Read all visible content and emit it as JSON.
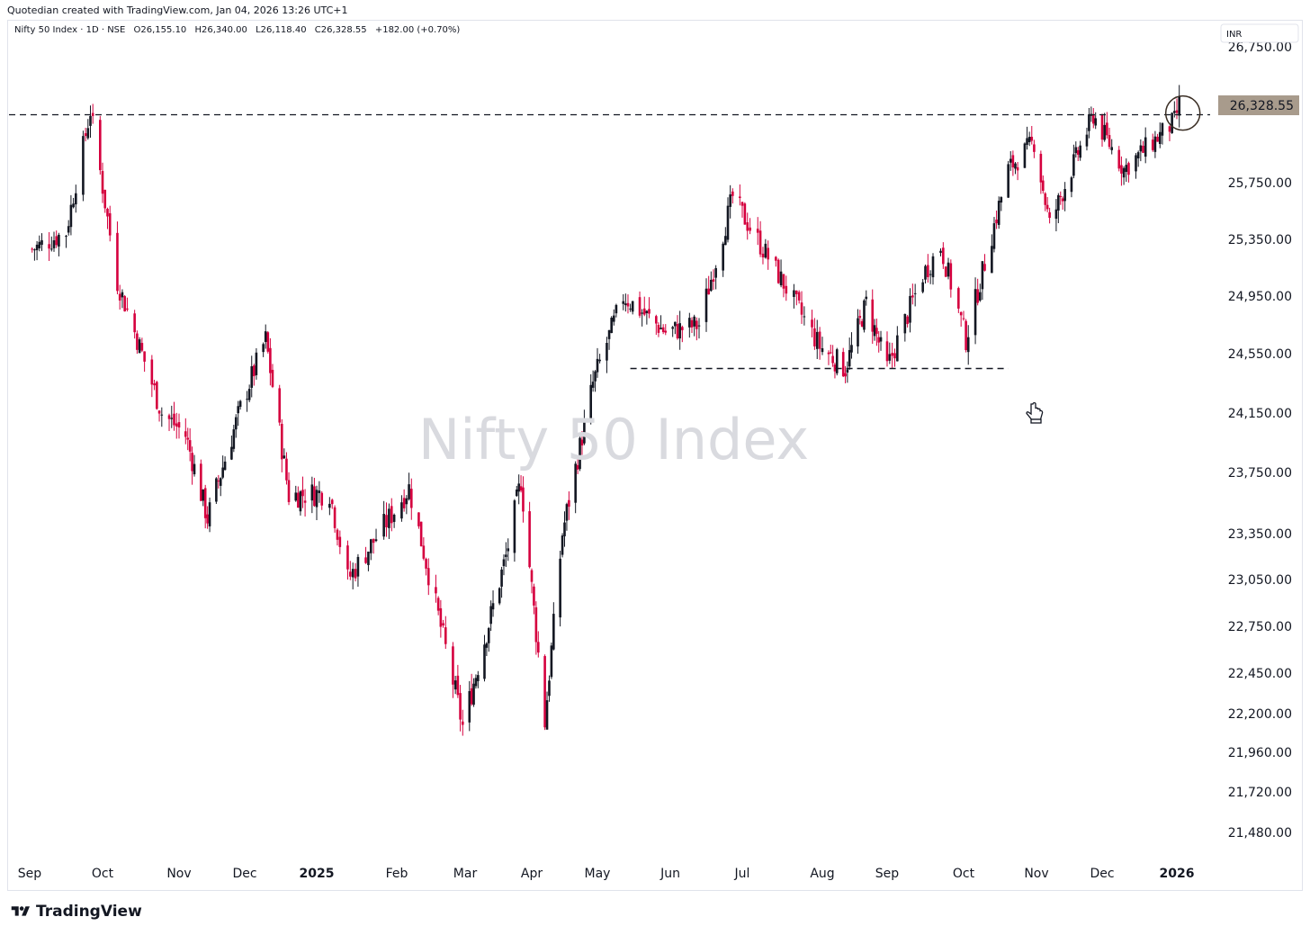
{
  "header": {
    "created_by": "Quotedian created with TradingView.com, Jan 04, 2026 13:26 UTC+1"
  },
  "legend": {
    "symbol": "Nifty 50 Index · 1D · NSE",
    "open": "O26,155.10",
    "high": "H26,340.00",
    "low": "L26,118.40",
    "close": "C26,328.55",
    "change": "+182.00 (+0.70%)"
  },
  "currency": "INR",
  "watermark": "Nifty 50 Index",
  "last_price_label": "26,328.55",
  "footer": {
    "brand": "TradingView"
  },
  "colors": {
    "up": "#131722",
    "down": "#d5003e",
    "last_price_bg": "#a89b8c",
    "dashed": "#131722"
  },
  "chart_data": {
    "type": "candlestick",
    "title": "Nifty 50 Index",
    "yaxis_ticks": [
      "26,750.00",
      "25,750.00",
      "25,350.00",
      "24,950.00",
      "24,550.00",
      "24,150.00",
      "23,750.00",
      "23,350.00",
      "23,050.00",
      "22,750.00",
      "22,450.00",
      "22,200.00",
      "21,960.00",
      "21,720.00",
      "21,480.00"
    ],
    "xaxis_ticks": [
      "Sep",
      "Oct",
      "Nov",
      "Dec",
      "2025",
      "Feb",
      "Mar",
      "Apr",
      "May",
      "Jun",
      "Jul",
      "Aug",
      "Sep",
      "Oct",
      "Nov",
      "Dec",
      "2026"
    ],
    "close_path": [
      [
        "2024-09-02",
        25280
      ],
      [
        "2024-09-16",
        25400
      ],
      [
        "2024-09-26",
        26280
      ],
      [
        "2024-10-07",
        25050
      ],
      [
        "2024-10-25",
        24150
      ],
      [
        "2024-11-04",
        24000
      ],
      [
        "2024-11-14",
        23450
      ],
      [
        "2024-11-29",
        24180
      ],
      [
        "2024-12-10",
        24650
      ],
      [
        "2024-12-20",
        23600
      ],
      [
        "2025-01-06",
        23620
      ],
      [
        "2025-01-13",
        23050
      ],
      [
        "2025-01-31",
        23500
      ],
      [
        "2025-02-06",
        23650
      ],
      [
        "2025-02-28",
        22120
      ],
      [
        "2025-03-20",
        23200
      ],
      [
        "2025-03-27",
        23700
      ],
      [
        "2025-04-07",
        22150
      ],
      [
        "2025-04-15",
        23350
      ],
      [
        "2025-04-29",
        24350
      ],
      [
        "2025-05-12",
        24950
      ],
      [
        "2025-05-30",
        24700
      ],
      [
        "2025-06-13",
        24750
      ],
      [
        "2025-06-27",
        25650
      ],
      [
        "2025-07-15",
        25100
      ],
      [
        "2025-07-31",
        24600
      ],
      [
        "2025-08-12",
        24450
      ],
      [
        "2025-08-22",
        24900
      ],
      [
        "2025-09-01",
        24450
      ],
      [
        "2025-09-15",
        25100
      ],
      [
        "2025-09-22",
        25300
      ],
      [
        "2025-10-02",
        24650
      ],
      [
        "2025-10-20",
        25850
      ],
      [
        "2025-10-31",
        26050
      ],
      [
        "2025-11-07",
        25450
      ],
      [
        "2025-11-27",
        26250
      ],
      [
        "2025-12-10",
        25850
      ],
      [
        "2025-12-31",
        26200
      ],
      [
        "2026-01-02",
        26328.55
      ]
    ],
    "horizontal_levels": [
      {
        "value": 26250,
        "style": "dashed",
        "span": "full"
      },
      {
        "value": 24450,
        "style": "dashed",
        "from": "2025-05",
        "to": "2025-10"
      }
    ],
    "last_price": 26328.55,
    "currency": "INR",
    "grid": false,
    "legend": "top-left"
  }
}
